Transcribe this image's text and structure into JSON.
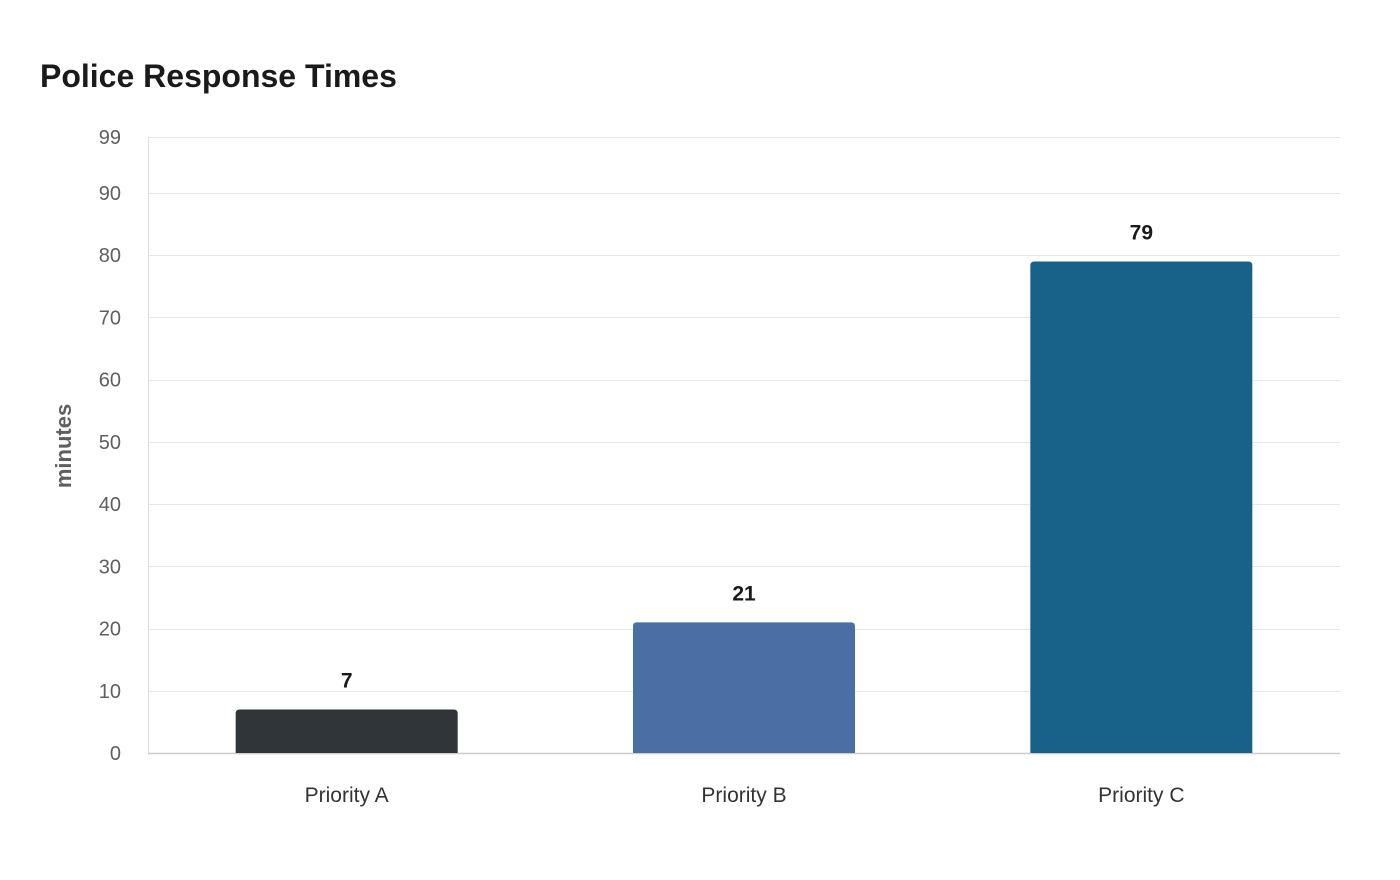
{
  "chart_data": {
    "type": "bar",
    "title": "Police Response Times",
    "xlabel": "",
    "ylabel": "minutes",
    "categories": [
      "Priority A",
      "Priority B",
      "Priority C"
    ],
    "values": [
      7,
      21,
      79
    ],
    "colors": [
      "#2f3538",
      "#4a6fa5",
      "#186188"
    ],
    "ylim": [
      0,
      99
    ],
    "yticks": [
      0,
      10,
      20,
      30,
      40,
      50,
      60,
      70,
      80,
      90,
      99
    ],
    "grid": true,
    "legend": "none"
  }
}
